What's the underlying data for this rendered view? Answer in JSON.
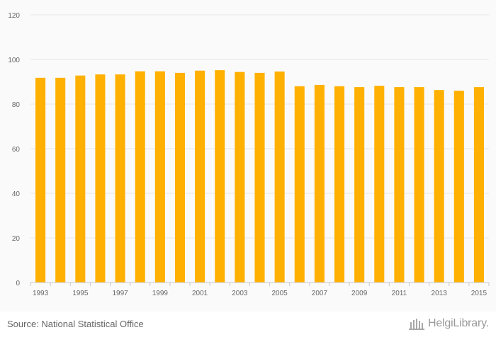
{
  "chart_data": {
    "type": "bar",
    "categories": [
      "1993",
      "1994",
      "1995",
      "1996",
      "1997",
      "1998",
      "1999",
      "2000",
      "2001",
      "2002",
      "2003",
      "2004",
      "2005",
      "2006",
      "2007",
      "2008",
      "2009",
      "2010",
      "2011",
      "2012",
      "2013",
      "2014",
      "2015"
    ],
    "x_tick_labels": [
      "1993",
      "1995",
      "1997",
      "1999",
      "2001",
      "2003",
      "2005",
      "2007",
      "2009",
      "2011",
      "2013",
      "2015"
    ],
    "values": [
      91.8,
      91.8,
      92.8,
      93.3,
      93.3,
      94.7,
      94.7,
      94.0,
      95.0,
      95.2,
      94.4,
      94.0,
      94.6,
      88.0,
      88.6,
      88.0,
      87.6,
      88.2,
      87.6,
      87.6,
      86.3,
      86.0,
      87.6
    ],
    "title": "",
    "xlabel": "",
    "ylabel": "",
    "ylim": [
      0,
      120
    ],
    "yticks": [
      0,
      20,
      40,
      60,
      80,
      100,
      120
    ],
    "bar_color": "#ffb000",
    "grid": true
  },
  "footer": {
    "source": "Source: National Statistical Office",
    "brand": "HelgiLibrary."
  }
}
